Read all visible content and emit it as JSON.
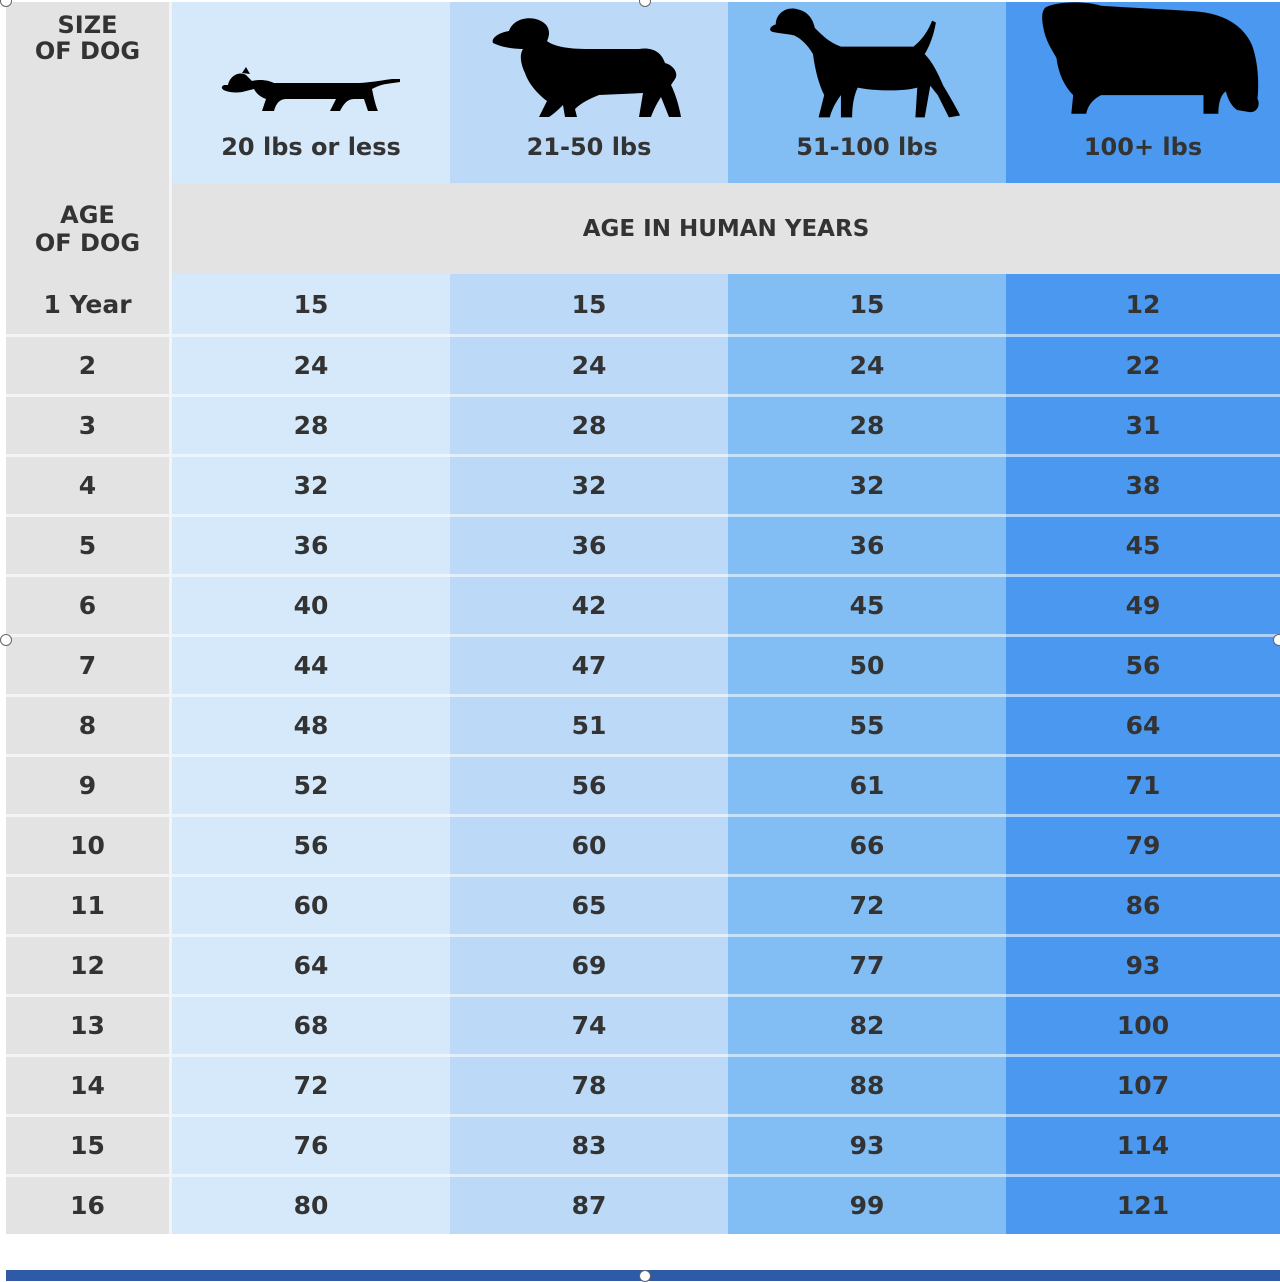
{
  "header": {
    "size_label_line1": "SIZE",
    "size_label_line2": "OF DOG",
    "age_label_line1": "AGE",
    "age_label_line2": "OF DOG",
    "human_years_label": "AGE IN HUMAN YEARS"
  },
  "icons": [
    "dachshund-icon",
    "spaniel-icon",
    "pointer-icon",
    "newfoundland-icon"
  ],
  "colors": {
    "col_20_or_less": "#d6e9fb",
    "col_21_50": "#bcdaf8",
    "col_51_100": "#82bdf4",
    "col_100_plus": "#4a98ef",
    "label_column": "#e3e3e3",
    "bottom_bar": "#2e5aa8"
  },
  "chart_data": {
    "type": "table",
    "columns": [
      "20 lbs or less",
      "21-50 lbs",
      "51-100 lbs",
      "100+ lbs"
    ],
    "rows": [
      {
        "age": "1 Year",
        "values": [
          "15",
          "15",
          "15",
          "12"
        ]
      },
      {
        "age": "2",
        "values": [
          "24",
          "24",
          "24",
          "22"
        ]
      },
      {
        "age": "3",
        "values": [
          "28",
          "28",
          "28",
          "31"
        ]
      },
      {
        "age": "4",
        "values": [
          "32",
          "32",
          "32",
          "38"
        ]
      },
      {
        "age": "5",
        "values": [
          "36",
          "36",
          "36",
          "45"
        ]
      },
      {
        "age": "6",
        "values": [
          "40",
          "42",
          "45",
          "49"
        ]
      },
      {
        "age": "7",
        "values": [
          "44",
          "47",
          "50",
          "56"
        ]
      },
      {
        "age": "8",
        "values": [
          "48",
          "51",
          "55",
          "64"
        ]
      },
      {
        "age": "9",
        "values": [
          "52",
          "56",
          "61",
          "71"
        ]
      },
      {
        "age": "10",
        "values": [
          "56",
          "60",
          "66",
          "79"
        ]
      },
      {
        "age": "11",
        "values": [
          "60",
          "65",
          "72",
          "86"
        ]
      },
      {
        "age": "12",
        "values": [
          "64",
          "69",
          "77",
          "93"
        ]
      },
      {
        "age": "13",
        "values": [
          "68",
          "74",
          "82",
          "100"
        ]
      },
      {
        "age": "14",
        "values": [
          "72",
          "78",
          "88",
          "107"
        ]
      },
      {
        "age": "15",
        "values": [
          "76",
          "83",
          "93",
          "114"
        ]
      },
      {
        "age": "16",
        "values": [
          "80",
          "87",
          "99",
          "121"
        ]
      }
    ]
  }
}
